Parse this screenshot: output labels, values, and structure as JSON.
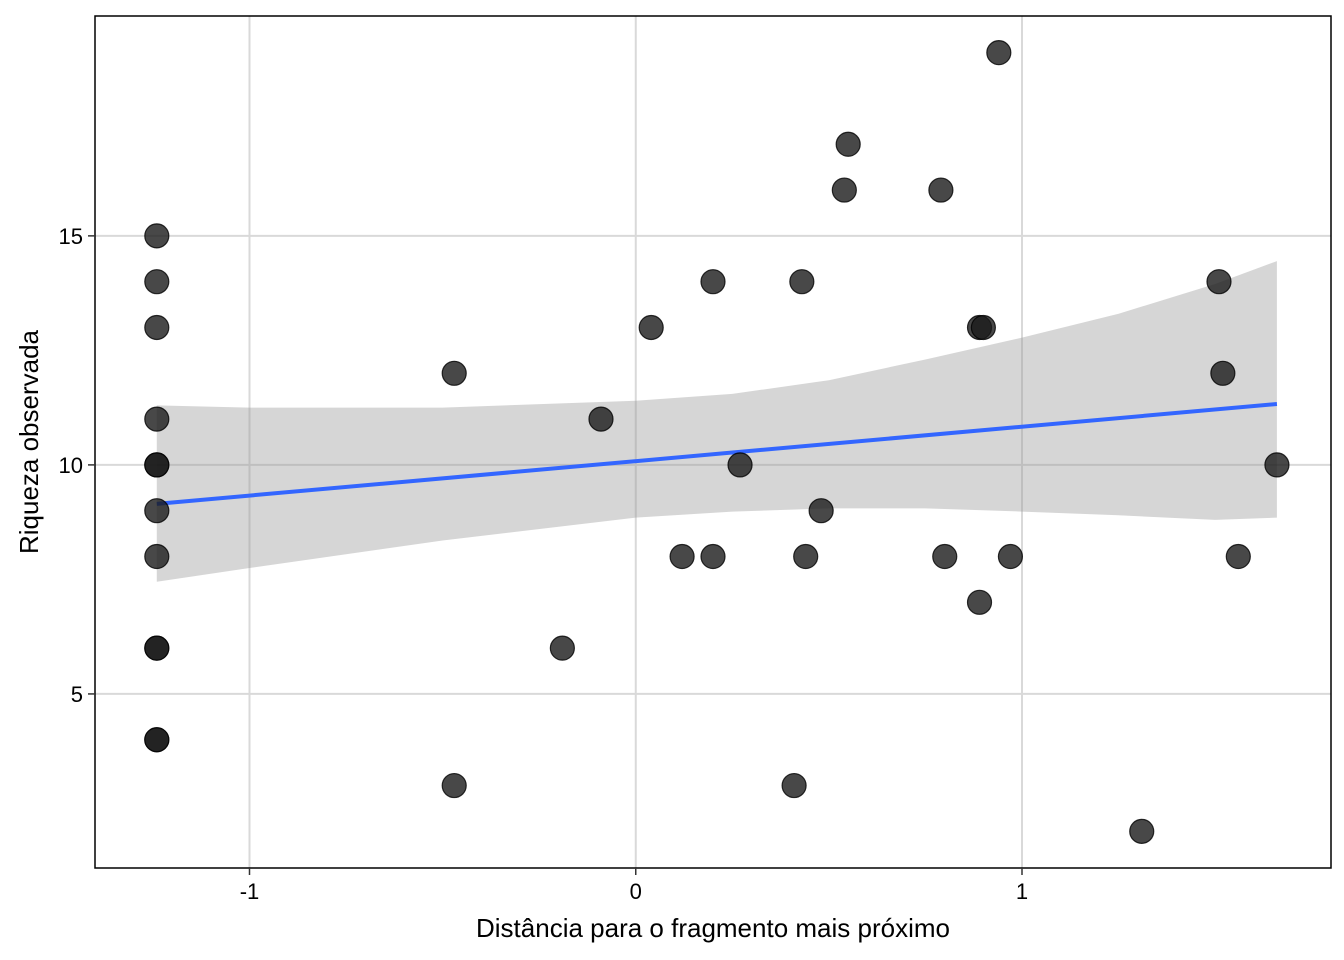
{
  "chart_data": {
    "type": "scatter",
    "xlabel": "Distância para o fragmento mais próximo",
    "ylabel": "Riqueza observada",
    "xlim": [
      -1.4,
      1.8
    ],
    "ylim": [
      1.2,
      19.8
    ],
    "x_ticks": [
      -1,
      0,
      1
    ],
    "x_tick_labels": [
      "-1",
      "0",
      "1"
    ],
    "y_ticks": [
      5,
      10,
      15
    ],
    "y_tick_labels": [
      "5",
      "10",
      "15"
    ],
    "grid": true,
    "colors": {
      "points": "#1a1a1a",
      "fit_line": "#3366FF",
      "confidence_band": "#999999",
      "grid": "#d9d9d9",
      "border": "#000000"
    },
    "points": [
      {
        "x": -1.24,
        "y": 15
      },
      {
        "x": -1.24,
        "y": 14
      },
      {
        "x": -1.24,
        "y": 13
      },
      {
        "x": -1.24,
        "y": 11
      },
      {
        "x": -1.24,
        "y": 10
      },
      {
        "x": -1.24,
        "y": 10
      },
      {
        "x": -1.24,
        "y": 9
      },
      {
        "x": -1.24,
        "y": 8
      },
      {
        "x": -1.24,
        "y": 6
      },
      {
        "x": -1.24,
        "y": 6
      },
      {
        "x": -1.24,
        "y": 4
      },
      {
        "x": -1.24,
        "y": 4
      },
      {
        "x": -0.47,
        "y": 12
      },
      {
        "x": -0.47,
        "y": 3
      },
      {
        "x": -0.19,
        "y": 6
      },
      {
        "x": -0.09,
        "y": 11
      },
      {
        "x": 0.04,
        "y": 13
      },
      {
        "x": 0.12,
        "y": 8
      },
      {
        "x": 0.2,
        "y": 14
      },
      {
        "x": 0.2,
        "y": 8
      },
      {
        "x": 0.27,
        "y": 10
      },
      {
        "x": 0.41,
        "y": 3
      },
      {
        "x": 0.43,
        "y": 14
      },
      {
        "x": 0.44,
        "y": 8
      },
      {
        "x": 0.48,
        "y": 9
      },
      {
        "x": 0.54,
        "y": 16
      },
      {
        "x": 0.55,
        "y": 17
      },
      {
        "x": 0.79,
        "y": 16
      },
      {
        "x": 0.8,
        "y": 8
      },
      {
        "x": 0.89,
        "y": 13
      },
      {
        "x": 0.9,
        "y": 13
      },
      {
        "x": 0.89,
        "y": 7
      },
      {
        "x": 0.94,
        "y": 19
      },
      {
        "x": 0.97,
        "y": 8
      },
      {
        "x": 1.31,
        "y": 2
      },
      {
        "x": 1.51,
        "y": 14
      },
      {
        "x": 1.52,
        "y": 12
      },
      {
        "x": 1.56,
        "y": 8
      },
      {
        "x": 1.66,
        "y": 10
      }
    ],
    "fit": {
      "method": "lm",
      "x_range": [
        -1.24,
        1.66
      ],
      "y_at_start": 9.15,
      "y_at_end": 11.33,
      "ci_band": [
        {
          "x": -1.24,
          "lo": 7.45,
          "hi": 11.3
        },
        {
          "x": -1.0,
          "lo": 7.75,
          "hi": 11.25
        },
        {
          "x": -0.5,
          "lo": 8.35,
          "hi": 11.25
        },
        {
          "x": 0.0,
          "lo": 8.85,
          "hi": 11.4
        },
        {
          "x": 0.25,
          "lo": 8.98,
          "hi": 11.55
        },
        {
          "x": 0.5,
          "lo": 9.05,
          "hi": 11.85
        },
        {
          "x": 0.75,
          "lo": 9.05,
          "hi": 12.3
        },
        {
          "x": 1.0,
          "lo": 8.98,
          "hi": 12.78
        },
        {
          "x": 1.25,
          "lo": 8.9,
          "hi": 13.3
        },
        {
          "x": 1.5,
          "lo": 8.8,
          "hi": 13.95
        },
        {
          "x": 1.66,
          "lo": 8.85,
          "hi": 14.45
        }
      ]
    }
  }
}
